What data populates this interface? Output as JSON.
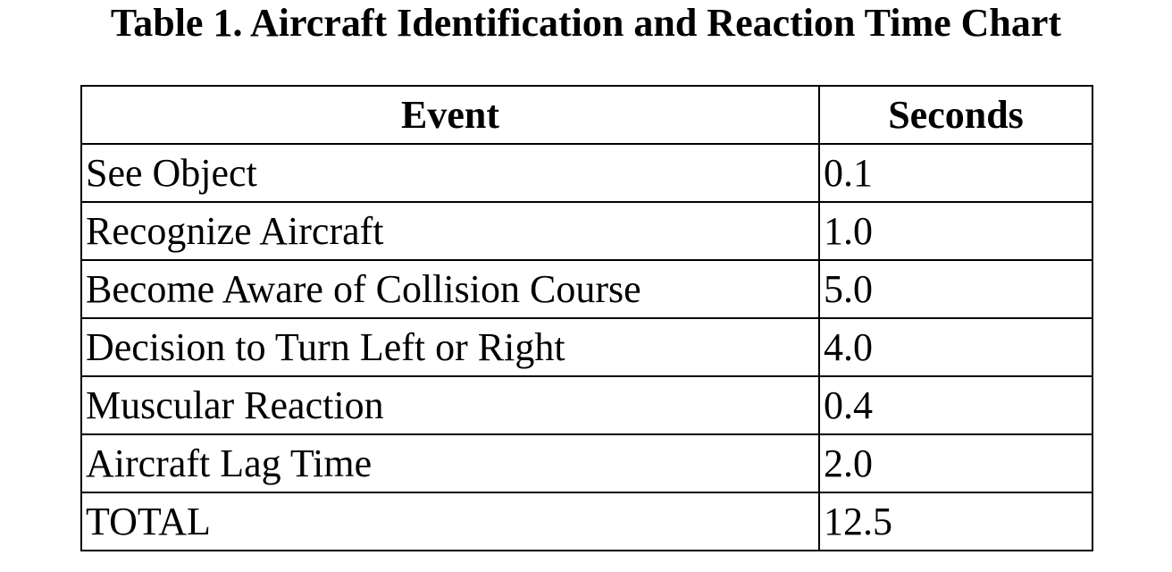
{
  "title": "Table 1. Aircraft Identification and Reaction Time Chart",
  "table": {
    "headers": [
      "Event",
      "Seconds"
    ],
    "rows": [
      {
        "event": "See Object",
        "seconds": "0.1"
      },
      {
        "event": "Recognize Aircraft",
        "seconds": "1.0"
      },
      {
        "event": "Become Aware of Collision Course",
        "seconds": "5.0"
      },
      {
        "event": "Decision to Turn Left or Right",
        "seconds": "4.0"
      },
      {
        "event": "Muscular Reaction",
        "seconds": "0.4"
      },
      {
        "event": "Aircraft Lag Time",
        "seconds": "2.0"
      },
      {
        "event": "TOTAL",
        "seconds": "12.5"
      }
    ]
  }
}
